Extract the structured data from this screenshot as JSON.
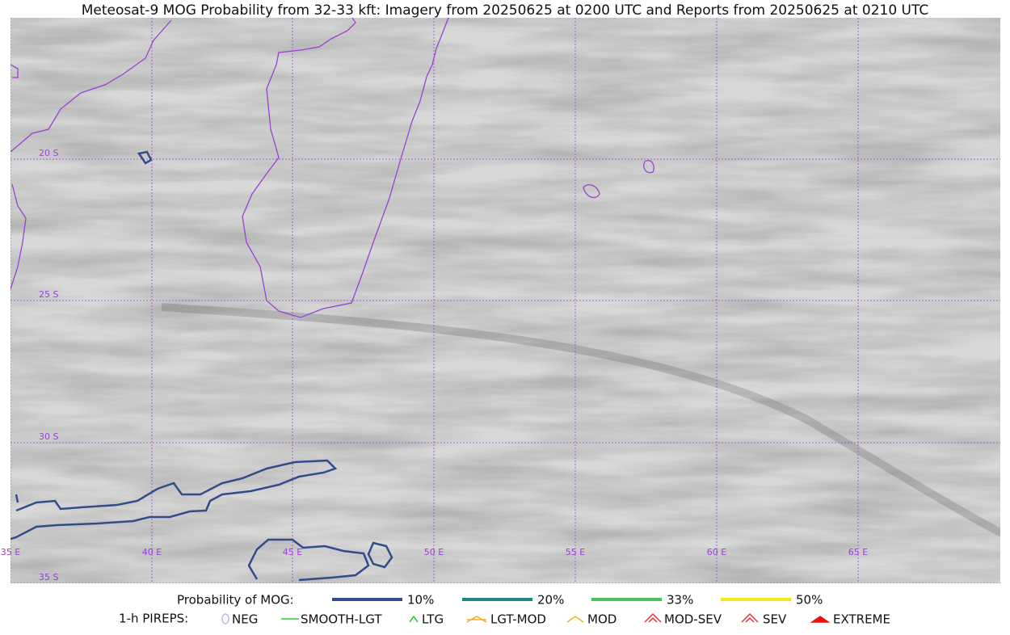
{
  "title": "Meteosat-9 MOG Probability from 32-33 kft: Imagery from 20250625 at 0200 UTC and Reports from 20250625 at 0210 UTC",
  "map": {
    "lat_labels": [
      "20 S",
      "25 S",
      "30 S",
      "35 S"
    ],
    "lon_labels": [
      "35 E",
      "40 E",
      "45 E",
      "50 E",
      "55 E",
      "60 E",
      "65 E"
    ]
  },
  "legend": {
    "probability": {
      "label": "Probability of MOG:",
      "items": [
        {
          "label": "10%",
          "color": "#324b8a"
        },
        {
          "label": "20%",
          "color": "#1a8a7f"
        },
        {
          "label": "33%",
          "color": "#4cc35a"
        },
        {
          "label": "50%",
          "color": "#f5e51f"
        }
      ]
    },
    "pireps": {
      "label": "1-h PIREPS:",
      "items": [
        {
          "label": "NEG",
          "color": "#b9b9f5"
        },
        {
          "label": "SMOOTH-LGT",
          "color": "#33cc33"
        },
        {
          "label": "LTG",
          "color": "#22cc22"
        },
        {
          "label": "LGT-MOD",
          "color": "#f0b020"
        },
        {
          "label": "MOD",
          "color": "#f0b020"
        },
        {
          "label": "MOD-SEV",
          "color": "#ee3333"
        },
        {
          "label": "SEV",
          "color": "#ee3333"
        },
        {
          "label": "EXTREME",
          "color": "#ee1111"
        }
      ]
    }
  }
}
